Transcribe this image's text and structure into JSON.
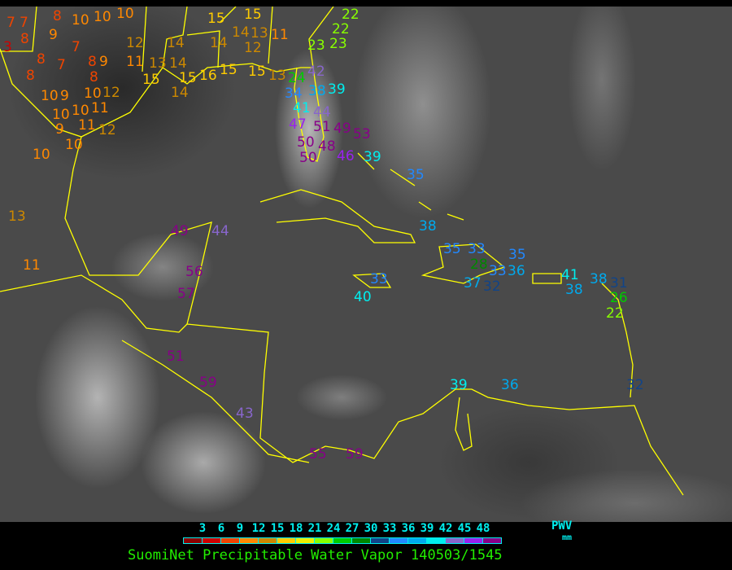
{
  "map": {
    "coastline_color": "#ffff00",
    "stations": [
      7,
      7,
      8,
      10,
      10,
      10,
      3,
      8,
      9,
      7,
      8,
      7,
      8,
      9,
      8,
      8,
      10,
      10,
      9,
      10,
      10,
      11,
      12,
      9,
      11,
      12,
      10,
      10,
      13,
      11,
      12,
      14,
      14,
      13,
      11,
      15,
      15,
      14,
      16,
      15,
      15,
      14,
      13,
      14,
      12,
      11,
      15,
      15,
      13,
      22,
      22,
      23,
      23,
      42,
      24,
      34,
      38,
      41,
      39,
      47,
      44,
      51,
      49,
      50,
      53,
      50,
      48,
      46,
      39,
      35,
      38,
      49,
      44,
      56,
      57,
      40,
      33,
      35,
      33,
      28,
      33,
      36,
      35,
      37,
      32,
      41,
      38,
      38,
      31,
      26,
      22,
      51,
      59,
      43,
      55,
      59,
      39,
      36,
      32
    ]
  },
  "legend": {
    "ticks": [
      "3",
      "6",
      "9",
      "12",
      "15",
      "18",
      "21",
      "24",
      "27",
      "30",
      "33",
      "36",
      "39",
      "42",
      "45",
      "48"
    ],
    "colors": [
      "#8b0000",
      "#cc0000",
      "#ee4400",
      "#ff8800",
      "#cc8800",
      "#ffcc00",
      "#eeee00",
      "#88ff00",
      "#00cc00",
      "#008800",
      "#114488",
      "#2288ff",
      "#00aaee",
      "#00eeee",
      "#8866cc",
      "#9922ee",
      "#880088"
    ],
    "unit_label": "PWV",
    "unit": "mm",
    "title": "SuomiNet Precipitable Water Vapor 140503/1545"
  }
}
